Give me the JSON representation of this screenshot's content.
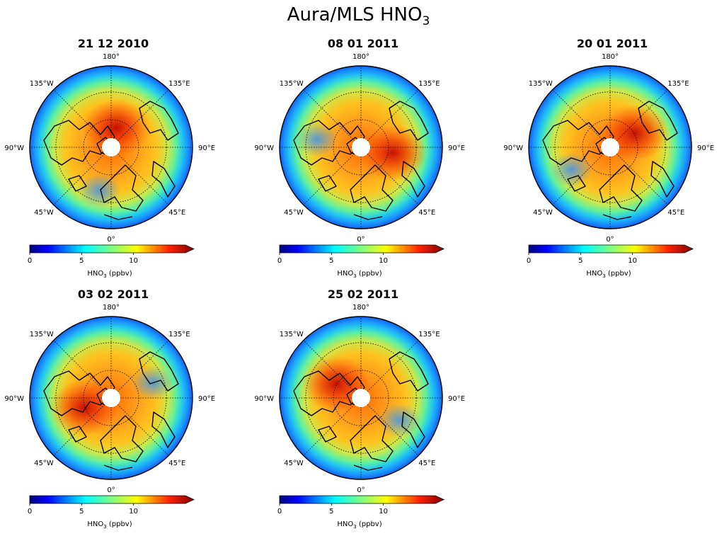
{
  "title": {
    "prefix": "Aura/MLS HNO",
    "subscript": "3"
  },
  "panels": [
    {
      "date": "21 12 2010",
      "hotspot_lon": 15,
      "hotspot_r": 0.25
    },
    {
      "date": "08 01 2011",
      "hotspot_lon": 100,
      "hotspot_r": 0.4
    },
    {
      "date": "20 01 2011",
      "hotspot_lon": 60,
      "hotspot_r": 0.35
    },
    {
      "date": "03 02 2011",
      "hotspot_lon": 250,
      "hotspot_r": 0.35
    },
    {
      "date": "25 02 2011",
      "hotspot_lon": 300,
      "hotspot_r": 0.35
    }
  ],
  "longitude_labels": [
    "180°",
    "135°E",
    "90°E",
    "45°E",
    "0°",
    "45°W",
    "90°W",
    "135°W"
  ],
  "colorbar": {
    "label_prefix": "HNO",
    "label_subscript": "3",
    "label_suffix": " (ppbv)",
    "ticks": [
      "0",
      "5",
      "10"
    ],
    "min": 0,
    "max": 15,
    "colormap": "jet",
    "extend": "max"
  },
  "colors": {
    "jet_low": "#00007f",
    "jet_mid": "#7fff7f",
    "jet_high": "#7f0000",
    "coast": "#000000"
  }
}
